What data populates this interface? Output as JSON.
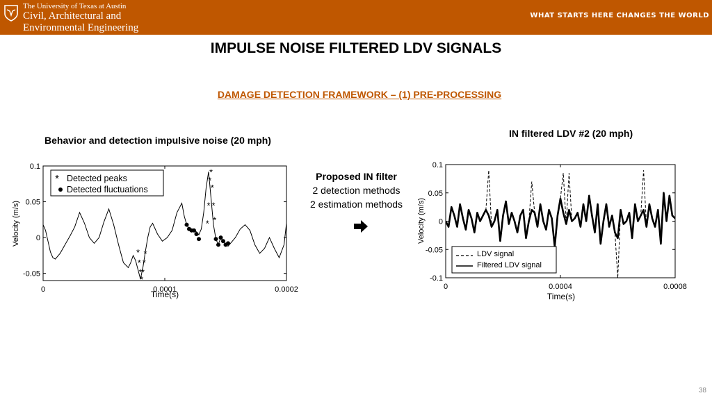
{
  "header": {
    "university": "The University of Texas at Austin",
    "dept_line1": "Civil, Architectural and",
    "dept_line2": "Environmental Engineering",
    "slogan": "WHAT STARTS HERE CHANGES THE WORLD",
    "brand_color": "#bf5700",
    "logo_icon": "longhorn-shield-icon"
  },
  "slide": {
    "title": "IMPULSE NOISE FILTERED LDV SIGNALS",
    "subtitle": "DAMAGE DETECTION FRAMEWORK – (1) PRE-PROCESSING",
    "left_title": "Behavior and detection impulsive noise (20 mph)",
    "right_title": "IN filtered LDV #2 (20 mph)",
    "filter_heading": "Proposed IN filter",
    "filter_line1": "2 detection methods",
    "filter_line2": "2 estimation methods",
    "arrow_icon": "right-arrow-icon",
    "page_number": "38"
  },
  "chart_data": [
    {
      "type": "line",
      "xlabel": "Time(s)",
      "ylabel": "Velocity (m/s)",
      "xlim": [
        0,
        0.0002
      ],
      "ylim": [
        -0.06,
        0.1
      ],
      "xticks": [
        0,
        0.0001,
        0.0002
      ],
      "xtick_labels": [
        "0",
        "0.0001",
        "0.0002"
      ],
      "yticks": [
        -0.05,
        0,
        0.05,
        0.1
      ],
      "ytick_labels": [
        "-0.05",
        "0",
        "0.05",
        "0.1"
      ],
      "grid": false,
      "legend_position": "top-left",
      "series": [
        {
          "name": "",
          "x": [
            0,
            2e-06,
            4e-06,
            6e-06,
            8e-06,
            1e-05,
            1.4e-05,
            1.8e-05,
            2.2e-05,
            2.6e-05,
            3e-05,
            3.4e-05,
            3.8e-05,
            4.2e-05,
            4.6e-05,
            5e-05,
            5.4e-05,
            5.8e-05,
            6.2e-05,
            6.6e-05,
            7e-05,
            7.2e-05,
            7.4e-05,
            7.6e-05,
            7.8e-05,
            8e-05,
            8.2e-05,
            8.4e-05,
            8.6e-05,
            8.8e-05,
            9e-05,
            9.4e-05,
            9.8e-05,
            0.000102,
            0.000106,
            0.00011,
            0.000114,
            0.000116,
            0.000118,
            0.00012,
            0.000122,
            0.000124,
            0.000126,
            0.000128,
            0.00013,
            0.000132,
            0.000134,
            0.000136,
            0.000138,
            0.00014,
            0.000142,
            0.000144,
            0.000146,
            0.000148,
            0.00015,
            0.000152,
            0.000154,
            0.000158,
            0.000162,
            0.000166,
            0.00017,
            0.000174,
            0.000178,
            0.000182,
            0.000186,
            0.00019,
            0.000194,
            0.000198,
            0.0002
          ],
          "y": [
            0.018,
            0.01,
            -0.005,
            -0.02,
            -0.028,
            -0.03,
            -0.022,
            -0.01,
            0.002,
            0.015,
            0.035,
            0.02,
            0.0,
            -0.008,
            0.0,
            0.022,
            0.04,
            0.018,
            -0.01,
            -0.035,
            -0.042,
            -0.035,
            -0.025,
            -0.032,
            -0.045,
            -0.058,
            -0.042,
            -0.02,
            0.0,
            0.015,
            0.02,
            0.005,
            -0.005,
            0.0,
            0.01,
            0.035,
            0.048,
            0.03,
            0.018,
            0.012,
            0.01,
            0.01,
            0.008,
            0.004,
            0.012,
            0.035,
            0.07,
            0.092,
            0.055,
            0.018,
            -0.002,
            -0.01,
            0.0,
            -0.005,
            -0.01,
            -0.012,
            -0.008,
            0.0,
            0.012,
            0.018,
            0.01,
            -0.01,
            -0.022,
            -0.015,
            0.0,
            -0.015,
            -0.028,
            -0.01,
            0.02
          ]
        }
      ],
      "legend": [
        "Detected peaks",
        "Detected fluctuations"
      ],
      "detected_peaks": {
        "x": [
          7.8e-05,
          7.9e-05,
          8e-05,
          8.1e-05,
          8.2e-05,
          8.3e-05,
          8.4e-05,
          0.000135,
          0.000136,
          0.000137,
          0.000138,
          0.000139,
          0.00014,
          0.000141
        ],
        "y": [
          -0.02,
          -0.035,
          -0.048,
          -0.058,
          -0.048,
          -0.035,
          -0.022,
          0.02,
          0.045,
          0.08,
          0.092,
          0.07,
          0.045,
          0.025
        ]
      },
      "detected_fluctuations": {
        "x": [
          0.000118,
          0.00012,
          0.000122,
          0.000124,
          0.000126,
          0.000128,
          0.000142,
          0.000144,
          0.000146,
          0.000148,
          0.00015,
          0.000152
        ],
        "y": [
          0.018,
          0.012,
          0.01,
          0.01,
          0.005,
          -0.002,
          -0.002,
          -0.01,
          0.0,
          -0.005,
          -0.01,
          -0.008
        ]
      }
    },
    {
      "type": "line",
      "xlabel": "Time(s)",
      "ylabel": "Velocity (m/s)",
      "xlim": [
        0,
        0.0008
      ],
      "ylim": [
        -0.1,
        0.1
      ],
      "xticks": [
        0,
        0.0004,
        0.0008
      ],
      "xtick_labels": [
        "0",
        "0.0004",
        "0.0008"
      ],
      "yticks": [
        -0.1,
        -0.05,
        0,
        0.05,
        0.1
      ],
      "ytick_labels": [
        "-0.1",
        "-0.05",
        "0",
        "0.05",
        "0.1"
      ],
      "grid": false,
      "legend_position": "bottom-left",
      "series": [
        {
          "name": "LDV signal",
          "style": "dashed",
          "x": [
            0,
            1e-05,
            2e-05,
            3e-05,
            4e-05,
            5e-05,
            6e-05,
            7e-05,
            8e-05,
            9e-05,
            0.0001,
            0.00011,
            0.00012,
            0.00013,
            0.00014,
            0.00015,
            0.00016,
            0.00017,
            0.00018,
            0.00019,
            0.0002,
            0.00021,
            0.00022,
            0.00023,
            0.00024,
            0.00025,
            0.00026,
            0.00027,
            0.00028,
            0.00029,
            0.0003,
            0.00031,
            0.00032,
            0.00033,
            0.00034,
            0.00035,
            0.00036,
            0.00037,
            0.00038,
            0.00039,
            0.0004,
            0.00041,
            0.00042,
            0.00043,
            0.00044,
            0.00045,
            0.00046,
            0.00047,
            0.00048,
            0.00049,
            0.0005,
            0.00051,
            0.00052,
            0.00053,
            0.00054,
            0.00055,
            0.00056,
            0.00057,
            0.00058,
            0.00059,
            0.0006,
            0.00061,
            0.00062,
            0.00063,
            0.00064,
            0.00065,
            0.00066,
            0.00067,
            0.00068,
            0.00069,
            0.0007,
            0.00071,
            0.00072,
            0.00073,
            0.00074,
            0.00075,
            0.00076,
            0.00077,
            0.00078,
            0.00079,
            0.0008
          ],
          "y": [
            0.0,
            -0.01,
            0.025,
            0.01,
            -0.01,
            0.03,
            0.005,
            -0.015,
            0.02,
            0.005,
            -0.02,
            0.015,
            0.0,
            0.01,
            0.02,
            0.09,
            -0.01,
            0.0,
            0.02,
            -0.035,
            0.01,
            0.035,
            -0.005,
            0.015,
            0.0,
            -0.02,
            0.01,
            0.02,
            -0.03,
            0.0,
            0.07,
            0.015,
            -0.01,
            0.03,
            0.0,
            -0.015,
            0.02,
            0.005,
            -0.045,
            0.01,
            0.04,
            0.085,
            -0.005,
            0.085,
            0.0,
            0.005,
            0.015,
            -0.01,
            0.03,
            0.0,
            0.045,
            0.01,
            -0.02,
            0.03,
            -0.04,
            0.0,
            0.03,
            -0.01,
            0.01,
            -0.02,
            -0.1,
            0.02,
            -0.005,
            0.0,
            0.015,
            -0.03,
            0.03,
            0.0,
            0.01,
            0.09,
            -0.01,
            0.03,
            0.005,
            -0.01,
            0.02,
            -0.04,
            0.05,
            0.0,
            0.045,
            0.01,
            0.005
          ]
        },
        {
          "name": "Filtered LDV signal",
          "style": "solid-thick",
          "x": [
            0,
            1e-05,
            2e-05,
            3e-05,
            4e-05,
            5e-05,
            6e-05,
            7e-05,
            8e-05,
            9e-05,
            0.0001,
            0.00011,
            0.00012,
            0.00013,
            0.00014,
            0.00015,
            0.00016,
            0.00017,
            0.00018,
            0.00019,
            0.0002,
            0.00021,
            0.00022,
            0.00023,
            0.00024,
            0.00025,
            0.00026,
            0.00027,
            0.00028,
            0.00029,
            0.0003,
            0.00031,
            0.00032,
            0.00033,
            0.00034,
            0.00035,
            0.00036,
            0.00037,
            0.00038,
            0.00039,
            0.0004,
            0.00041,
            0.00042,
            0.00043,
            0.00044,
            0.00045,
            0.00046,
            0.00047,
            0.00048,
            0.00049,
            0.0005,
            0.00051,
            0.00052,
            0.00053,
            0.00054,
            0.00055,
            0.00056,
            0.00057,
            0.00058,
            0.00059,
            0.0006,
            0.00061,
            0.00062,
            0.00063,
            0.00064,
            0.00065,
            0.00066,
            0.00067,
            0.00068,
            0.00069,
            0.0007,
            0.00071,
            0.00072,
            0.00073,
            0.00074,
            0.00075,
            0.00076,
            0.00077,
            0.00078,
            0.00079,
            0.0008
          ],
          "y": [
            0.0,
            -0.01,
            0.025,
            0.01,
            -0.01,
            0.03,
            0.005,
            -0.015,
            0.02,
            0.005,
            -0.02,
            0.015,
            0.0,
            0.01,
            0.02,
            0.01,
            -0.01,
            0.0,
            0.02,
            -0.035,
            0.01,
            0.035,
            -0.005,
            0.015,
            0.0,
            -0.02,
            0.01,
            0.02,
            -0.03,
            0.0,
            0.02,
            0.015,
            -0.01,
            0.03,
            0.0,
            -0.015,
            0.02,
            0.005,
            -0.045,
            0.01,
            0.04,
            0.015,
            -0.005,
            0.02,
            0.0,
            0.005,
            0.015,
            -0.01,
            0.03,
            0.0,
            0.045,
            0.01,
            -0.02,
            0.03,
            -0.04,
            0.0,
            0.03,
            -0.01,
            0.01,
            -0.02,
            -0.03,
            0.02,
            -0.005,
            0.0,
            0.015,
            -0.03,
            0.03,
            0.0,
            0.01,
            0.02,
            -0.01,
            0.03,
            0.005,
            -0.01,
            0.02,
            -0.04,
            0.05,
            0.0,
            0.045,
            0.01,
            0.005
          ]
        }
      ]
    }
  ]
}
